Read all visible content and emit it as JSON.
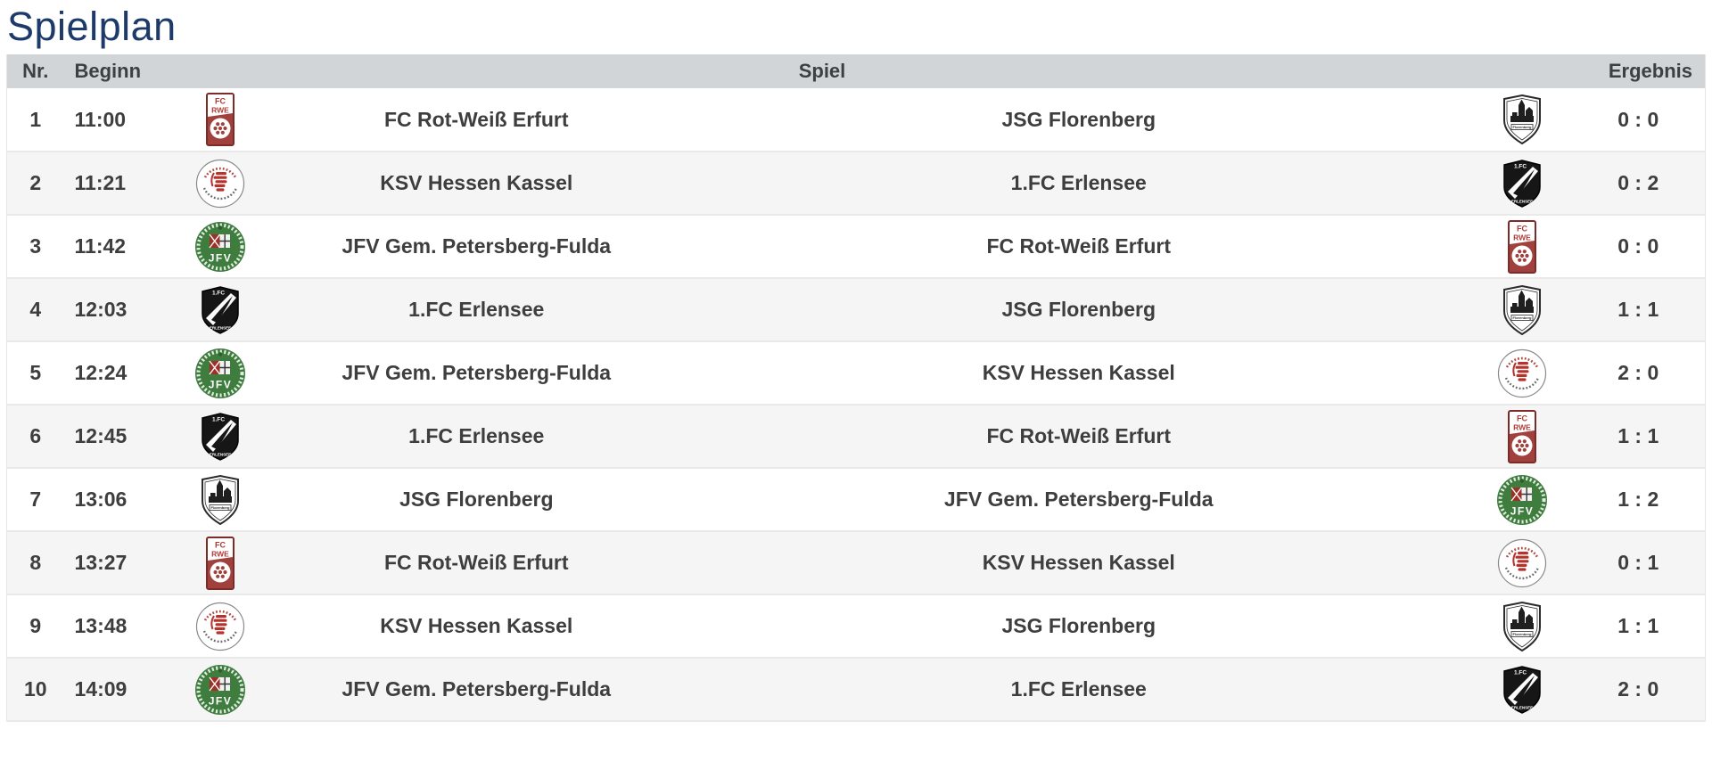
{
  "page": {
    "title": "Spielplan"
  },
  "colors": {
    "title_text": "#1d3a6b",
    "header_bg": "#d2d5d8",
    "header_text": "#3c4043",
    "body_text": "#3e3e3e",
    "row_alt_bg": "#f5f5f6",
    "divider": "#e9e9e9"
  },
  "table": {
    "headers": {
      "nr": "Nr.",
      "beginn": "Beginn",
      "spiel": "Spiel",
      "ergebnis": "Ergebnis"
    },
    "teams": {
      "fcrwe": {
        "name": "FC Rot-Weiß Erfurt",
        "icon": "fc-rot-weiss-erfurt-logo-icon"
      },
      "ksv": {
        "name": "KSV Hessen Kassel",
        "icon": "ksv-hessen-kassel-logo-icon"
      },
      "jfv": {
        "name": "JFV Gem. Petersberg-Fulda",
        "icon": "jfv-petersberg-fulda-logo-icon"
      },
      "erlensee": {
        "name": "1.FC Erlensee",
        "icon": "fc-erlensee-logo-icon"
      },
      "florenberg": {
        "name": "JSG Florenberg",
        "icon": "jsg-florenberg-logo-icon"
      }
    },
    "rows": [
      {
        "nr": "1",
        "time": "11:00",
        "home": "fcrwe",
        "away": "florenberg",
        "score": "0 : 0"
      },
      {
        "nr": "2",
        "time": "11:21",
        "home": "ksv",
        "away": "erlensee",
        "score": "0 : 2"
      },
      {
        "nr": "3",
        "time": "11:42",
        "home": "jfv",
        "away": "fcrwe",
        "score": "0 : 0"
      },
      {
        "nr": "4",
        "time": "12:03",
        "home": "erlensee",
        "away": "florenberg",
        "score": "1 : 1"
      },
      {
        "nr": "5",
        "time": "12:24",
        "home": "jfv",
        "away": "ksv",
        "score": "2 : 0"
      },
      {
        "nr": "6",
        "time": "12:45",
        "home": "erlensee",
        "away": "fcrwe",
        "score": "1 : 1"
      },
      {
        "nr": "7",
        "time": "13:06",
        "home": "florenberg",
        "away": "jfv",
        "score": "1 : 2"
      },
      {
        "nr": "8",
        "time": "13:27",
        "home": "fcrwe",
        "away": "ksv",
        "score": "0 : 1"
      },
      {
        "nr": "9",
        "time": "13:48",
        "home": "ksv",
        "away": "florenberg",
        "score": "1 : 1"
      },
      {
        "nr": "10",
        "time": "14:09",
        "home": "jfv",
        "away": "erlensee",
        "score": "2 : 0"
      }
    ]
  }
}
